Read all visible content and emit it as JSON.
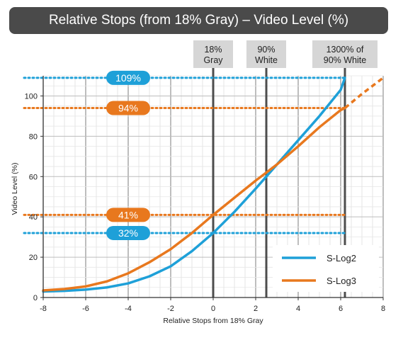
{
  "title": "Relative Stops (from 18% Gray) – Video Level (%)",
  "colors": {
    "slog2": "#1ea0d8",
    "slog3": "#e8781e",
    "title_bg": "#4a4a4a",
    "ref_bg": "#d6d6d6"
  },
  "reference_lines": [
    {
      "x": 0,
      "label": [
        "18%",
        "Gray"
      ]
    },
    {
      "x": 2.5,
      "label": [
        "90%",
        "White"
      ]
    },
    {
      "x": 6.2,
      "label": [
        "1300% of",
        "90% White"
      ]
    }
  ],
  "level_markers": [
    {
      "y": 109,
      "label": "109%",
      "series": "S-Log2"
    },
    {
      "y": 94,
      "label": "94%",
      "series": "S-Log3"
    },
    {
      "y": 41,
      "label": "41%",
      "series": "S-Log3"
    },
    {
      "y": 32,
      "label": "32%",
      "series": "S-Log2"
    }
  ],
  "chart_data": {
    "type": "line",
    "xlabel": "Relative Stops from 18% Gray",
    "ylabel": "Video Level (%)",
    "xlim": [
      -8,
      8
    ],
    "ylim": [
      0,
      110
    ],
    "xticks": [
      -8,
      -6,
      -4,
      -2,
      0,
      2,
      4,
      6,
      8
    ],
    "yticks": [
      0,
      20,
      40,
      60,
      80,
      100
    ],
    "grid": true,
    "legend_position": "bottom-right",
    "series": [
      {
        "name": "S-Log2",
        "color": "#1ea0d8",
        "x": [
          -8,
          -7,
          -6,
          -5,
          -4,
          -3,
          -2,
          -1,
          0,
          1,
          2,
          2.5,
          3,
          4,
          5,
          6,
          6.2
        ],
        "y": [
          3,
          3.3,
          3.9,
          5,
          7,
          10.5,
          15.5,
          23,
          32,
          42.5,
          54,
          60,
          66,
          78,
          90,
          103,
          109
        ]
      },
      {
        "name": "S-Log3",
        "color": "#e8781e",
        "x": [
          -8,
          -7,
          -6,
          -5,
          -4,
          -3,
          -2,
          -1,
          0,
          1,
          2,
          2.5,
          3,
          4,
          5,
          6,
          6.2,
          7,
          8
        ],
        "y": [
          3.5,
          4.2,
          5.5,
          8,
          12,
          17.5,
          24,
          32,
          41,
          49.5,
          58,
          62,
          66,
          75,
          84.5,
          93,
          94,
          101,
          109
        ],
        "dashed_after_x": 6.2
      }
    ]
  }
}
